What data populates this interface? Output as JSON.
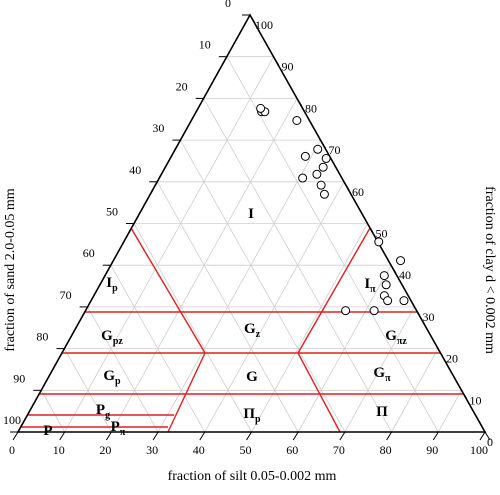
{
  "chart_data": {
    "type": "ternary",
    "bottom_axis_title": "fraction of silt 0.05-0.002 mm",
    "left_axis_title": "fraction of sand 2.0-0.05 mm",
    "right_axis_title": "fraction of clay d < 0.002 mm",
    "silt_ticks": [
      0,
      10,
      20,
      30,
      40,
      50,
      60,
      70,
      80,
      90,
      100
    ],
    "sand_ticks": [
      0,
      10,
      20,
      30,
      40,
      50,
      60,
      70,
      80,
      90,
      100
    ],
    "clay_ticks": [
      0,
      10,
      20,
      30,
      40,
      50,
      60,
      70,
      80,
      90,
      100
    ],
    "grid": true,
    "regions": [
      {
        "text": "I"
      },
      {
        "text": "I",
        "sub": "p"
      },
      {
        "text": "I",
        "sub": "π"
      },
      {
        "text": "G",
        "sub": "pz"
      },
      {
        "text": "G",
        "sub": "z"
      },
      {
        "text": "G",
        "sub": "πz"
      },
      {
        "text": "G",
        "sub": "p"
      },
      {
        "text": "G"
      },
      {
        "text": "G",
        "sub": "π"
      },
      {
        "text": "P",
        "sub": "g"
      },
      {
        "text": "Π",
        "sub": "p"
      },
      {
        "text": "Π"
      },
      {
        "text": "P"
      },
      {
        "text": "P",
        "sub": "π"
      }
    ],
    "points": {
      "clay": [
        76.8,
        76.8,
        77.6,
        74.7,
        67.8,
        65.6,
        66.1,
        63.5,
        61.8,
        60.9,
        59.2,
        57.0,
        45.6,
        41.1,
        37.5,
        35.3,
        32.7,
        31.5,
        31.5,
        29.1,
        29.1
      ],
      "silt": [
        14.0,
        14.7,
        13.4,
        22.6,
        30.5,
        33.4,
        28.7,
        33.8,
        33.3,
        30.7,
        35.5,
        37.3,
        54.6,
        61.5,
        59.8,
        61.3,
        62.2,
        63.5,
        67.0,
        61.8,
        55.7
      ],
      "color": "#000000"
    },
    "boundary_color": "#e02020"
  }
}
